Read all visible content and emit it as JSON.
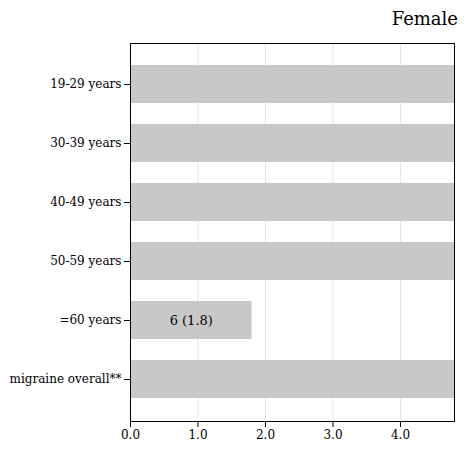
{
  "chart_data": {
    "type": "bar",
    "orientation": "horizontal",
    "title": "Female",
    "categories": [
      "19-29 years",
      "30-39 years",
      "40-49 years",
      "50-59 years",
      "=60 years",
      "migraine overall**"
    ],
    "values": [
      4.8,
      4.8,
      4.8,
      4.8,
      1.8,
      4.8
    ],
    "color": "#c8c8c8",
    "xlim": [
      0.0,
      4.8
    ],
    "xticks": [
      {
        "value": 0.0,
        "label": "0.0"
      },
      {
        "value": 1.0,
        "label": "1.0"
      },
      {
        "value": 2.0,
        "label": "2.0"
      },
      {
        "value": 3.0,
        "label": "3.0"
      },
      {
        "value": 4.0,
        "label": "4.0"
      }
    ],
    "grid": true,
    "annotations": [
      {
        "text": "6 (1.8)",
        "category": "=60 years"
      }
    ]
  }
}
